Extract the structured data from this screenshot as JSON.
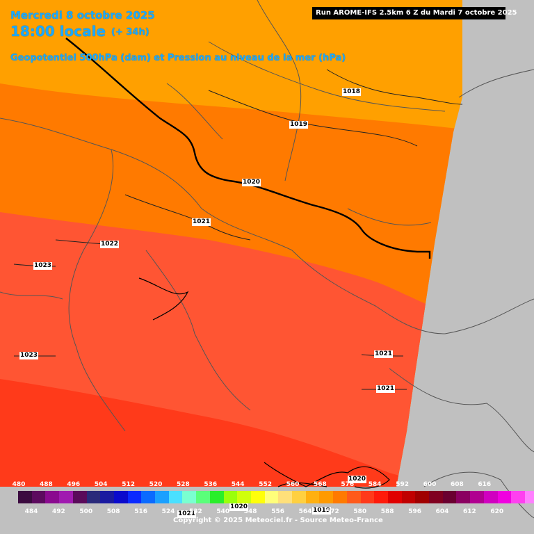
{
  "header": {
    "date": "Mercredi 8 octobre 2025",
    "time": "18:00 locale",
    "lead": "(+ 34h)",
    "field": "Geopotentiel 500hPa (dam) et Pression au niveau de la mer (hPa)",
    "run": "Run AROME-IFS 2.5km 6 Z du Mardi 7 octobre 2025"
  },
  "isobars": [
    "1018",
    "1019",
    "1020",
    "1021",
    "1022",
    "1023",
    "1023",
    "1021",
    "1021",
    "1020",
    "1020",
    "1019",
    "1021"
  ],
  "scale": {
    "top": [
      "480",
      "488",
      "496",
      "504",
      "512",
      "520",
      "528",
      "536",
      "544",
      "552",
      "560",
      "568",
      "576",
      "584",
      "592",
      "600",
      "608",
      "616"
    ],
    "bottom": [
      "484",
      "492",
      "500",
      "508",
      "516",
      "524",
      "532",
      "540",
      "548",
      "556",
      "564",
      "572",
      "580",
      "588",
      "596",
      "604",
      "612",
      "620"
    ],
    "colors": [
      "#3b0a3f",
      "#5c0a5e",
      "#8a0a8f",
      "#a01ab0",
      "#5a0a5a",
      "#2a2a7a",
      "#1a1aa0",
      "#0a0acc",
      "#0a2aff",
      "#0a6aff",
      "#1aa0ff",
      "#4ae0ff",
      "#7affd0",
      "#5aff7a",
      "#2aee2a",
      "#9aff0a",
      "#d0ff0a",
      "#ffff0a",
      "#ffff7a",
      "#ffe07a",
      "#ffd040",
      "#ffb010",
      "#ff9a00",
      "#ff7a00",
      "#ff5a1a",
      "#ff3a1a",
      "#ff1a0a",
      "#e00000",
      "#c00000",
      "#a00000",
      "#800020",
      "#6a0030",
      "#8a0060",
      "#b00090",
      "#d000c0",
      "#f000e0",
      "#ff40f0",
      "#ff80ff"
    ]
  },
  "copyright": "Copyright © 2025 Meteociel.fr - Source Meteo-France"
}
